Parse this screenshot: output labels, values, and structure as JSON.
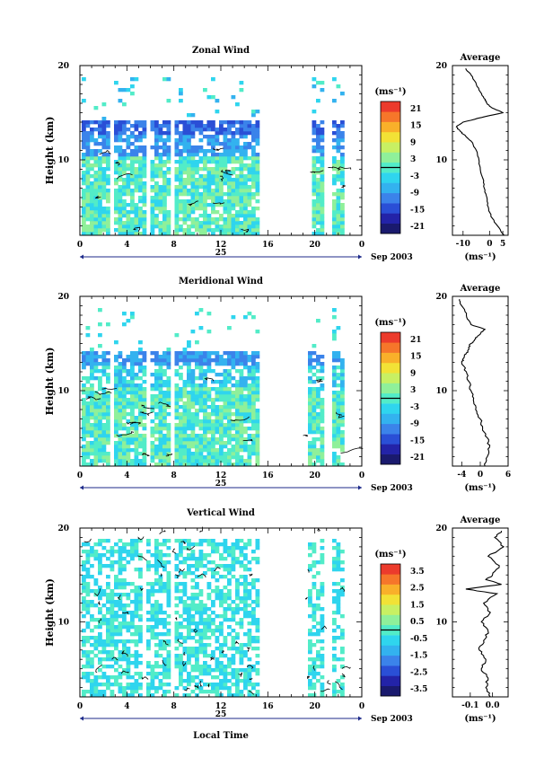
{
  "figure": {
    "date_label": "Sep 2003",
    "day_label": "25",
    "xlabel": "Local Time",
    "x_ticks": [
      "0",
      "4",
      "8",
      "12",
      "16",
      "20",
      "0"
    ],
    "unit_label": "(ms⁻¹)",
    "avg_title": "Average"
  },
  "colors": {
    "palette": [
      "#1a1a6e",
      "#2323a8",
      "#2a4fd6",
      "#3b83ea",
      "#33b2ef",
      "#2fd5ee",
      "#52ecc8",
      "#8ff09a",
      "#c8f063",
      "#f2e236",
      "#f9b02a",
      "#f6762a",
      "#ec3b2c"
    ]
  },
  "chart_data": [
    {
      "type": "heatmap",
      "title": "Zonal Wind",
      "ylabel": "Height (km)",
      "x_range_hours": [
        0,
        24
      ],
      "ylim": [
        2,
        20
      ],
      "y_ticks": [
        "20",
        "10"
      ],
      "colorbar": {
        "unit": "(ms⁻¹)",
        "range": [
          -24,
          24
        ],
        "ticks": [
          "21",
          "15",
          "9",
          "3",
          "-3",
          "-9",
          "-15",
          "-21"
        ]
      },
      "data_gaps_hours": [
        [
          2.3,
          2.6
        ],
        [
          5.5,
          5.9
        ],
        [
          7.5,
          8.0
        ],
        [
          10.5,
          10.8
        ],
        [
          15.0,
          19.3
        ],
        [
          19.4,
          19.6
        ],
        [
          20.6,
          21.2
        ]
      ],
      "profile": {
        "title": "Average",
        "xlabel": "(ms⁻¹)",
        "x_ticks": [
          "-10",
          "0",
          "5"
        ],
        "xlim": [
          -14,
          7
        ],
        "y_ticks": [
          "20",
          "10"
        ],
        "height_km": [
          2.0,
          3.0,
          4.0,
          5.0,
          6.0,
          7.0,
          8.0,
          9.0,
          10.0,
          11.0,
          12.0,
          12.5,
          13.0,
          13.5,
          14.0,
          14.5,
          15.0,
          15.5,
          16.0,
          16.5,
          17.0,
          18.0,
          19.0,
          19.7
        ],
        "mean_ms": [
          5.5,
          3.0,
          0.5,
          -0.5,
          -1.0,
          -2.0,
          -2.5,
          -3.5,
          -4.0,
          -5.0,
          -7.0,
          -9.0,
          -11.0,
          -12.5,
          -10.0,
          -3.0,
          5.0,
          1.0,
          -1.0,
          -2.0,
          -3.0,
          -5.0,
          -7.0,
          -9.0
        ]
      }
    },
    {
      "type": "heatmap",
      "title": "Meridional Wind",
      "ylabel": "Height (km)",
      "x_range_hours": [
        0,
        24
      ],
      "ylim": [
        2,
        20
      ],
      "y_ticks": [
        "20",
        "10"
      ],
      "colorbar": {
        "unit": "(ms⁻¹)",
        "range": [
          -24,
          24
        ],
        "ticks": [
          "21",
          "15",
          "9",
          "3",
          "-3",
          "-9",
          "-15",
          "-21"
        ]
      },
      "data_gaps_hours": [
        [
          2.3,
          2.6
        ],
        [
          5.5,
          5.9
        ],
        [
          7.5,
          8.0
        ],
        [
          10.5,
          10.8
        ],
        [
          15.0,
          19.3
        ],
        [
          20.6,
          21.2
        ]
      ],
      "profile": {
        "title": "Average",
        "xlabel": "(ms⁻¹)",
        "x_ticks": [
          "-4",
          "0",
          "6"
        ],
        "xlim": [
          -6,
          6
        ],
        "y_ticks": [
          "20",
          "10"
        ],
        "height_km": [
          2.0,
          3.0,
          4.0,
          5.0,
          6.0,
          7.0,
          8.0,
          9.0,
          10.0,
          11.0,
          12.0,
          13.0,
          13.5,
          14.0,
          14.5,
          15.0,
          15.5,
          16.0,
          16.5,
          17.0,
          18.0,
          19.0,
          19.7
        ],
        "mean_ms": [
          1.0,
          1.5,
          2.0,
          1.5,
          0.5,
          0.0,
          -1.0,
          -1.5,
          -2.0,
          -2.5,
          -3.0,
          -4.0,
          -3.5,
          -3.0,
          -2.5,
          -2.0,
          -1.0,
          0.0,
          1.0,
          -2.0,
          -3.0,
          -4.0,
          -4.5
        ]
      }
    },
    {
      "type": "heatmap",
      "title": "Vertical Wind",
      "ylabel": "Height (km)",
      "x_range_hours": [
        0,
        24
      ],
      "ylim": [
        2,
        20
      ],
      "y_ticks": [
        "20",
        "10"
      ],
      "colorbar": {
        "unit": "(ms⁻¹)",
        "range": [
          -4,
          4
        ],
        "ticks": [
          "3.5",
          "2.5",
          "1.5",
          "0.5",
          "-0.5",
          "-1.5",
          "-2.5",
          "-3.5"
        ]
      },
      "data_gaps_hours": [
        [
          1.7,
          1.8
        ],
        [
          5.3,
          5.6
        ],
        [
          7.7,
          8.0
        ],
        [
          10.5,
          10.8
        ],
        [
          15.0,
          19.3
        ],
        [
          20.6,
          21.2
        ]
      ],
      "profile": {
        "title": "Average",
        "xlabel": "(ms⁻¹)",
        "x_ticks": [
          "-0.1",
          "0.0"
        ],
        "xlim": [
          -0.18,
          0.07
        ],
        "y_ticks": [
          "20",
          "10"
        ],
        "height_km": [
          2.0,
          3.0,
          4.0,
          5.0,
          6.0,
          7.0,
          8.0,
          9.0,
          10.0,
          11.0,
          12.0,
          13.0,
          13.5,
          14.0,
          14.5,
          15.0,
          16.0,
          17.0,
          18.0,
          19.0,
          19.7
        ],
        "mean_ms": [
          -0.01,
          -0.03,
          -0.02,
          -0.05,
          -0.03,
          -0.06,
          -0.04,
          -0.02,
          -0.05,
          -0.01,
          -0.04,
          0.02,
          -0.12,
          0.04,
          -0.03,
          0.0,
          0.03,
          -0.02,
          0.05,
          0.01,
          0.04
        ]
      }
    }
  ]
}
